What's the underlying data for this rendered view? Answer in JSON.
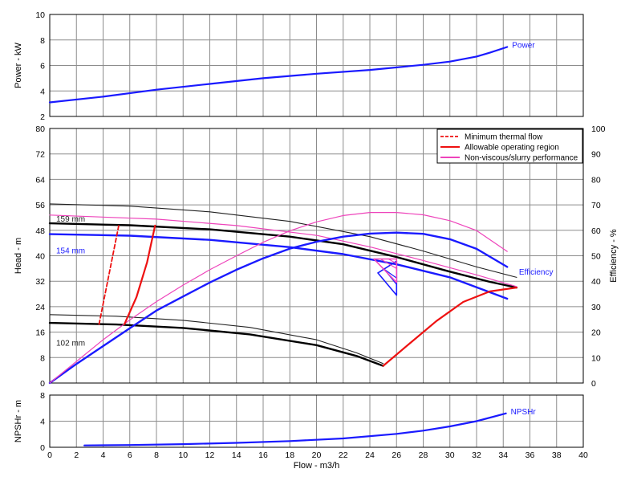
{
  "chart_data": [
    {
      "type": "line",
      "name": "power-panel",
      "xlim": [
        0,
        40
      ],
      "ylim": [
        2,
        10
      ],
      "ylabel": "Power - kW",
      "x_ticks": [
        0,
        2,
        4,
        6,
        8,
        10,
        12,
        14,
        16,
        18,
        20,
        22,
        24,
        26,
        28,
        30,
        32,
        34,
        36,
        38,
        40
      ],
      "y_ticks": [
        2,
        4,
        6,
        8,
        10
      ],
      "grid": true,
      "series": [
        {
          "name": "Power",
          "color": "#1a1aff",
          "points": [
            [
              0,
              3.1
            ],
            [
              4,
              3.55
            ],
            [
              8,
              4.1
            ],
            [
              12,
              4.55
            ],
            [
              16,
              5.0
            ],
            [
              20,
              5.35
            ],
            [
              24,
              5.65
            ],
            [
              28,
              6.05
            ],
            [
              30,
              6.3
            ],
            [
              32,
              6.7
            ],
            [
              33,
              7.0
            ],
            [
              34.3,
              7.45
            ]
          ]
        }
      ]
    },
    {
      "type": "line",
      "name": "head-panel",
      "xlim": [
        0,
        40
      ],
      "ylim": [
        0,
        80
      ],
      "y2lim": [
        0,
        100
      ],
      "ylabel": "Head - m",
      "y2label": "Efficiency - %",
      "x_ticks": [
        0,
        2,
        4,
        6,
        8,
        10,
        12,
        14,
        16,
        18,
        20,
        22,
        24,
        26,
        28,
        30,
        32,
        34,
        36,
        38,
        40
      ],
      "y_ticks": [
        0,
        8,
        16,
        24,
        32,
        40,
        48,
        56,
        64,
        72,
        80
      ],
      "y2_ticks": [
        0,
        10,
        20,
        30,
        40,
        50,
        60,
        70,
        80,
        90,
        100
      ],
      "grid": true,
      "legend": {
        "placement": "top-right",
        "items": [
          {
            "label": "Minimum thermal flow",
            "color": "#ee1111",
            "dash": true
          },
          {
            "label": "Allowable operating region",
            "color": "#ee1111",
            "dash": false
          },
          {
            "label": "Non-viscous/slurry performance",
            "color": "#ee44bb",
            "dash": false
          }
        ]
      },
      "curve_labels": [
        {
          "text": "159 mm",
          "color": "#222222",
          "at": [
            0.3,
            51.5
          ]
        },
        {
          "text": "154 mm",
          "color": "#1a1aff",
          "at": [
            0.3,
            41.5
          ]
        },
        {
          "text": "102 mm",
          "color": "#222222",
          "at": [
            0.3,
            12.5
          ]
        },
        {
          "text": "Efficiency",
          "color": "#1a1aff",
          "at": [
            35.0,
            34.8
          ]
        }
      ],
      "series": [
        {
          "color": "#222222",
          "width": 1.1,
          "axis": "y",
          "points": [
            [
              0,
              56.3
            ],
            [
              6,
              55.6
            ],
            [
              12,
              53.8
            ],
            [
              18,
              50.8
            ],
            [
              24,
              46.0
            ],
            [
              28,
              41.5
            ],
            [
              32,
              36.5
            ],
            [
              35,
              33.2
            ]
          ]
        },
        {
          "color": "#000000",
          "width": 2.4,
          "axis": "y",
          "points": [
            [
              0,
              50.2
            ],
            [
              6,
              49.6
            ],
            [
              12,
              48.3
            ],
            [
              18,
              46.0
            ],
            [
              22,
              43.6
            ],
            [
              26,
              39.6
            ],
            [
              30,
              35.0
            ],
            [
              33,
              31.8
            ],
            [
              35,
              30.0
            ]
          ]
        },
        {
          "color": "#1a1aff",
          "width": 2.4,
          "axis": "y",
          "points": [
            [
              0,
              46.8
            ],
            [
              6,
              46.3
            ],
            [
              12,
              45.0
            ],
            [
              18,
              42.7
            ],
            [
              22,
              40.5
            ],
            [
              26,
              37.3
            ],
            [
              30,
              33.2
            ],
            [
              34.3,
              26.5
            ]
          ]
        },
        {
          "color": "#ee44bb",
          "width": 1.2,
          "axis": "y",
          "points": [
            [
              0,
              52.8
            ],
            [
              8,
              51.5
            ],
            [
              14,
              49.5
            ],
            [
              20,
              46.4
            ],
            [
              24,
              42.8
            ],
            [
              28,
              38.5
            ],
            [
              32,
              34.0
            ],
            [
              35,
              30.3
            ]
          ]
        },
        {
          "color": "#222222",
          "width": 1.1,
          "axis": "y",
          "points": [
            [
              0,
              21.5
            ],
            [
              5,
              21.0
            ],
            [
              10,
              19.7
            ],
            [
              15,
              17.5
            ],
            [
              20,
              13.6
            ],
            [
              23,
              9.5
            ],
            [
              25,
              6.1
            ]
          ]
        },
        {
          "color": "#000000",
          "width": 2.4,
          "axis": "y",
          "points": [
            [
              0,
              18.9
            ],
            [
              5,
              18.4
            ],
            [
              10,
              17.3
            ],
            [
              15,
              15.3
            ],
            [
              20,
              11.9
            ],
            [
              23,
              8.5
            ],
            [
              25,
              5.4
            ]
          ]
        },
        {
          "color": "#1a1aff",
          "width": 2.4,
          "axis": "y2",
          "points": [
            [
              0,
              0
            ],
            [
              2,
              7.5
            ],
            [
              4,
              14.5
            ],
            [
              6,
              21.5
            ],
            [
              8,
              28.5
            ],
            [
              10,
              34.0
            ],
            [
              12,
              39.5
            ],
            [
              14,
              44.5
            ],
            [
              16,
              49.0
            ],
            [
              18,
              52.8
            ],
            [
              20,
              55.5
            ],
            [
              22,
              57.5
            ],
            [
              24,
              58.7
            ],
            [
              26,
              59.1
            ],
            [
              28,
              58.6
            ],
            [
              30,
              56.5
            ],
            [
              32,
              52.7
            ],
            [
              34.3,
              45.6
            ]
          ]
        },
        {
          "color": "#ee44bb",
          "width": 1.2,
          "axis": "y2",
          "points": [
            [
              0,
              0
            ],
            [
              2,
              8.5
            ],
            [
              4,
              17.0
            ],
            [
              6,
              24.8
            ],
            [
              8,
              32.0
            ],
            [
              10,
              38.5
            ],
            [
              12,
              44.5
            ],
            [
              14,
              50.0
            ],
            [
              16,
              55.3
            ],
            [
              18,
              59.8
            ],
            [
              20,
              63.3
            ],
            [
              22,
              65.8
            ],
            [
              24,
              67.0
            ],
            [
              26,
              67.0
            ],
            [
              28,
              66.1
            ],
            [
              30,
              63.8
            ],
            [
              32,
              59.9
            ],
            [
              34.3,
              51.7
            ]
          ]
        },
        {
          "color": "#ee1111",
          "width": 1.8,
          "axis": "y",
          "dash": true,
          "points": [
            [
              3.7,
              18.5
            ],
            [
              5.2,
              50.0
            ]
          ]
        },
        {
          "color": "#ee1111",
          "width": 2.2,
          "axis": "y",
          "points": [
            [
              5.6,
              18.5
            ],
            [
              6.5,
              27.0
            ],
            [
              7.3,
              38.0
            ],
            [
              7.9,
              49.5
            ]
          ]
        },
        {
          "color": "#ee1111",
          "width": 2.2,
          "axis": "y",
          "points": [
            [
              25,
              5.4
            ],
            [
              27,
              12.5
            ],
            [
              29,
              19.5
            ],
            [
              31,
              25.5
            ],
            [
              33,
              28.8
            ],
            [
              35,
              30.0
            ]
          ]
        },
        {
          "color": "#1a1aff",
          "width": 1.6,
          "axis": "y",
          "points": [
            [
              24.6,
              34.6
            ],
            [
              26,
              27.6
            ],
            [
              26,
              38.3
            ],
            [
              24.6,
              34.6
            ]
          ]
        },
        {
          "color": "#1a1aff",
          "width": 1.2,
          "axis": "y",
          "points": [
            [
              25.3,
              34.6
            ],
            [
              26,
              31.0
            ]
          ]
        },
        {
          "color": "#1a1aff",
          "width": 1.2,
          "axis": "y",
          "points": [
            [
              25.0,
              36.0
            ],
            [
              26,
              33.0
            ]
          ]
        },
        {
          "color": "#ee44bb",
          "width": 1.6,
          "axis": "y",
          "points": [
            [
              24.3,
              39.0
            ],
            [
              26,
              39.0
            ],
            [
              26,
              31.6
            ],
            [
              24.3,
              39.0
            ]
          ]
        },
        {
          "color": "#ee44bb",
          "width": 1.2,
          "axis": "y",
          "points": [
            [
              24.8,
              39.0
            ],
            [
              26,
              36.0
            ]
          ]
        },
        {
          "color": "#ee44bb",
          "width": 1.2,
          "axis": "y",
          "points": [
            [
              25.4,
              39.0
            ],
            [
              26,
              37.5
            ]
          ]
        }
      ]
    },
    {
      "type": "line",
      "name": "npsh-panel",
      "xlim": [
        0,
        40
      ],
      "ylim": [
        0,
        8
      ],
      "xlabel": "Flow - m3/h",
      "ylabel": "NPSHr - m",
      "x_ticks": [
        0,
        2,
        4,
        6,
        8,
        10,
        12,
        14,
        16,
        18,
        20,
        22,
        24,
        26,
        28,
        30,
        32,
        34,
        36,
        38,
        40
      ],
      "y_ticks": [
        0,
        4,
        8
      ],
      "grid": true,
      "series": [
        {
          "name": "NPSHr",
          "color": "#1a1aff",
          "points": [
            [
              2.6,
              0.28
            ],
            [
              6,
              0.35
            ],
            [
              10,
              0.48
            ],
            [
              14,
              0.68
            ],
            [
              18,
              0.95
            ],
            [
              22,
              1.35
            ],
            [
              26,
              2.05
            ],
            [
              28,
              2.55
            ],
            [
              30,
              3.2
            ],
            [
              32,
              4.0
            ],
            [
              34.2,
              5.2
            ]
          ]
        }
      ]
    }
  ]
}
